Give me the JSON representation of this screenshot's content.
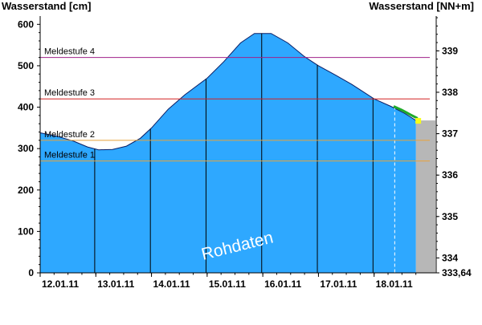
{
  "chart_data": {
    "type": "area",
    "watermark": "Rohdaten",
    "left_axis": {
      "title": "Wasserstand [cm]",
      "ylim": [
        0,
        620
      ],
      "ticks": [
        0,
        100,
        200,
        300,
        400,
        500,
        600
      ],
      "tick_labels": [
        "0",
        "100",
        "200",
        "300",
        "400",
        "500",
        "600"
      ]
    },
    "right_axis": {
      "title": "Wasserstand [NN+m]",
      "ticks": [
        {
          "label": "333,64",
          "cm": 0
        },
        {
          "label": "334",
          "cm": 36
        },
        {
          "label": "335",
          "cm": 136
        },
        {
          "label": "336",
          "cm": 236
        },
        {
          "label": "337",
          "cm": 336
        },
        {
          "label": "338",
          "cm": 436
        },
        {
          "label": "339",
          "cm": 536
        }
      ]
    },
    "x_axis": {
      "xlim": [
        12.0,
        19.0
      ],
      "date_labels": [
        "12.01.11",
        "13.01.11",
        "14.01.11",
        "15.01.11",
        "16.01.11",
        "17.01.11",
        "18.01.11"
      ],
      "date_positions": [
        12,
        13,
        14,
        15,
        16,
        17,
        18
      ]
    },
    "thresholds": [
      {
        "name": "Meldestufe 1",
        "value": 270,
        "color": "#e8a23a"
      },
      {
        "name": "Meldestufe 2",
        "value": 320,
        "color": "#e8a23a"
      },
      {
        "name": "Meldestufe 3",
        "value": 420,
        "color": "#d42020"
      },
      {
        "name": "Meldestufe 4",
        "value": 520,
        "color": "#a0208a"
      }
    ],
    "series": [
      {
        "values": [
          {
            "x": 12.0,
            "y": 338
          },
          {
            "x": 12.3,
            "y": 330
          },
          {
            "x": 12.6,
            "y": 318
          },
          {
            "x": 12.85,
            "y": 304
          },
          {
            "x": 13.05,
            "y": 297
          },
          {
            "x": 13.3,
            "y": 298
          },
          {
            "x": 13.55,
            "y": 306
          },
          {
            "x": 13.8,
            "y": 325
          },
          {
            "x": 14.0,
            "y": 350
          },
          {
            "x": 14.3,
            "y": 395
          },
          {
            "x": 14.6,
            "y": 430
          },
          {
            "x": 15.0,
            "y": 470
          },
          {
            "x": 15.3,
            "y": 510
          },
          {
            "x": 15.6,
            "y": 555
          },
          {
            "x": 15.85,
            "y": 578
          },
          {
            "x": 16.15,
            "y": 578
          },
          {
            "x": 16.45,
            "y": 555
          },
          {
            "x": 16.75,
            "y": 522
          },
          {
            "x": 17.0,
            "y": 500
          },
          {
            "x": 17.3,
            "y": 478
          },
          {
            "x": 17.6,
            "y": 455
          },
          {
            "x": 18.0,
            "y": 420
          },
          {
            "x": 18.3,
            "y": 402
          },
          {
            "x": 18.55,
            "y": 385
          },
          {
            "x": 18.75,
            "y": 368
          }
        ]
      }
    ],
    "forecast": {
      "values": [
        {
          "x": 18.35,
          "y": 402
        },
        {
          "x": 18.5,
          "y": 393
        },
        {
          "x": 18.65,
          "y": 382
        },
        {
          "x": 18.78,
          "y": 373
        }
      ]
    },
    "current_marker": {
      "x": 18.8,
      "y": 368
    },
    "forecast_start_x": 18.37,
    "grid": {
      "vertical_at": [
        12.98,
        13.98,
        14.98,
        15.98,
        16.98,
        17.98
      ]
    },
    "colors": {
      "area": "#2ea8ff",
      "area_line": "#0a1e66",
      "forecast": "#1faa2a",
      "marker": "#f4ff1a",
      "grey_bar": "#b7b7b7",
      "grid": "#000000"
    }
  }
}
